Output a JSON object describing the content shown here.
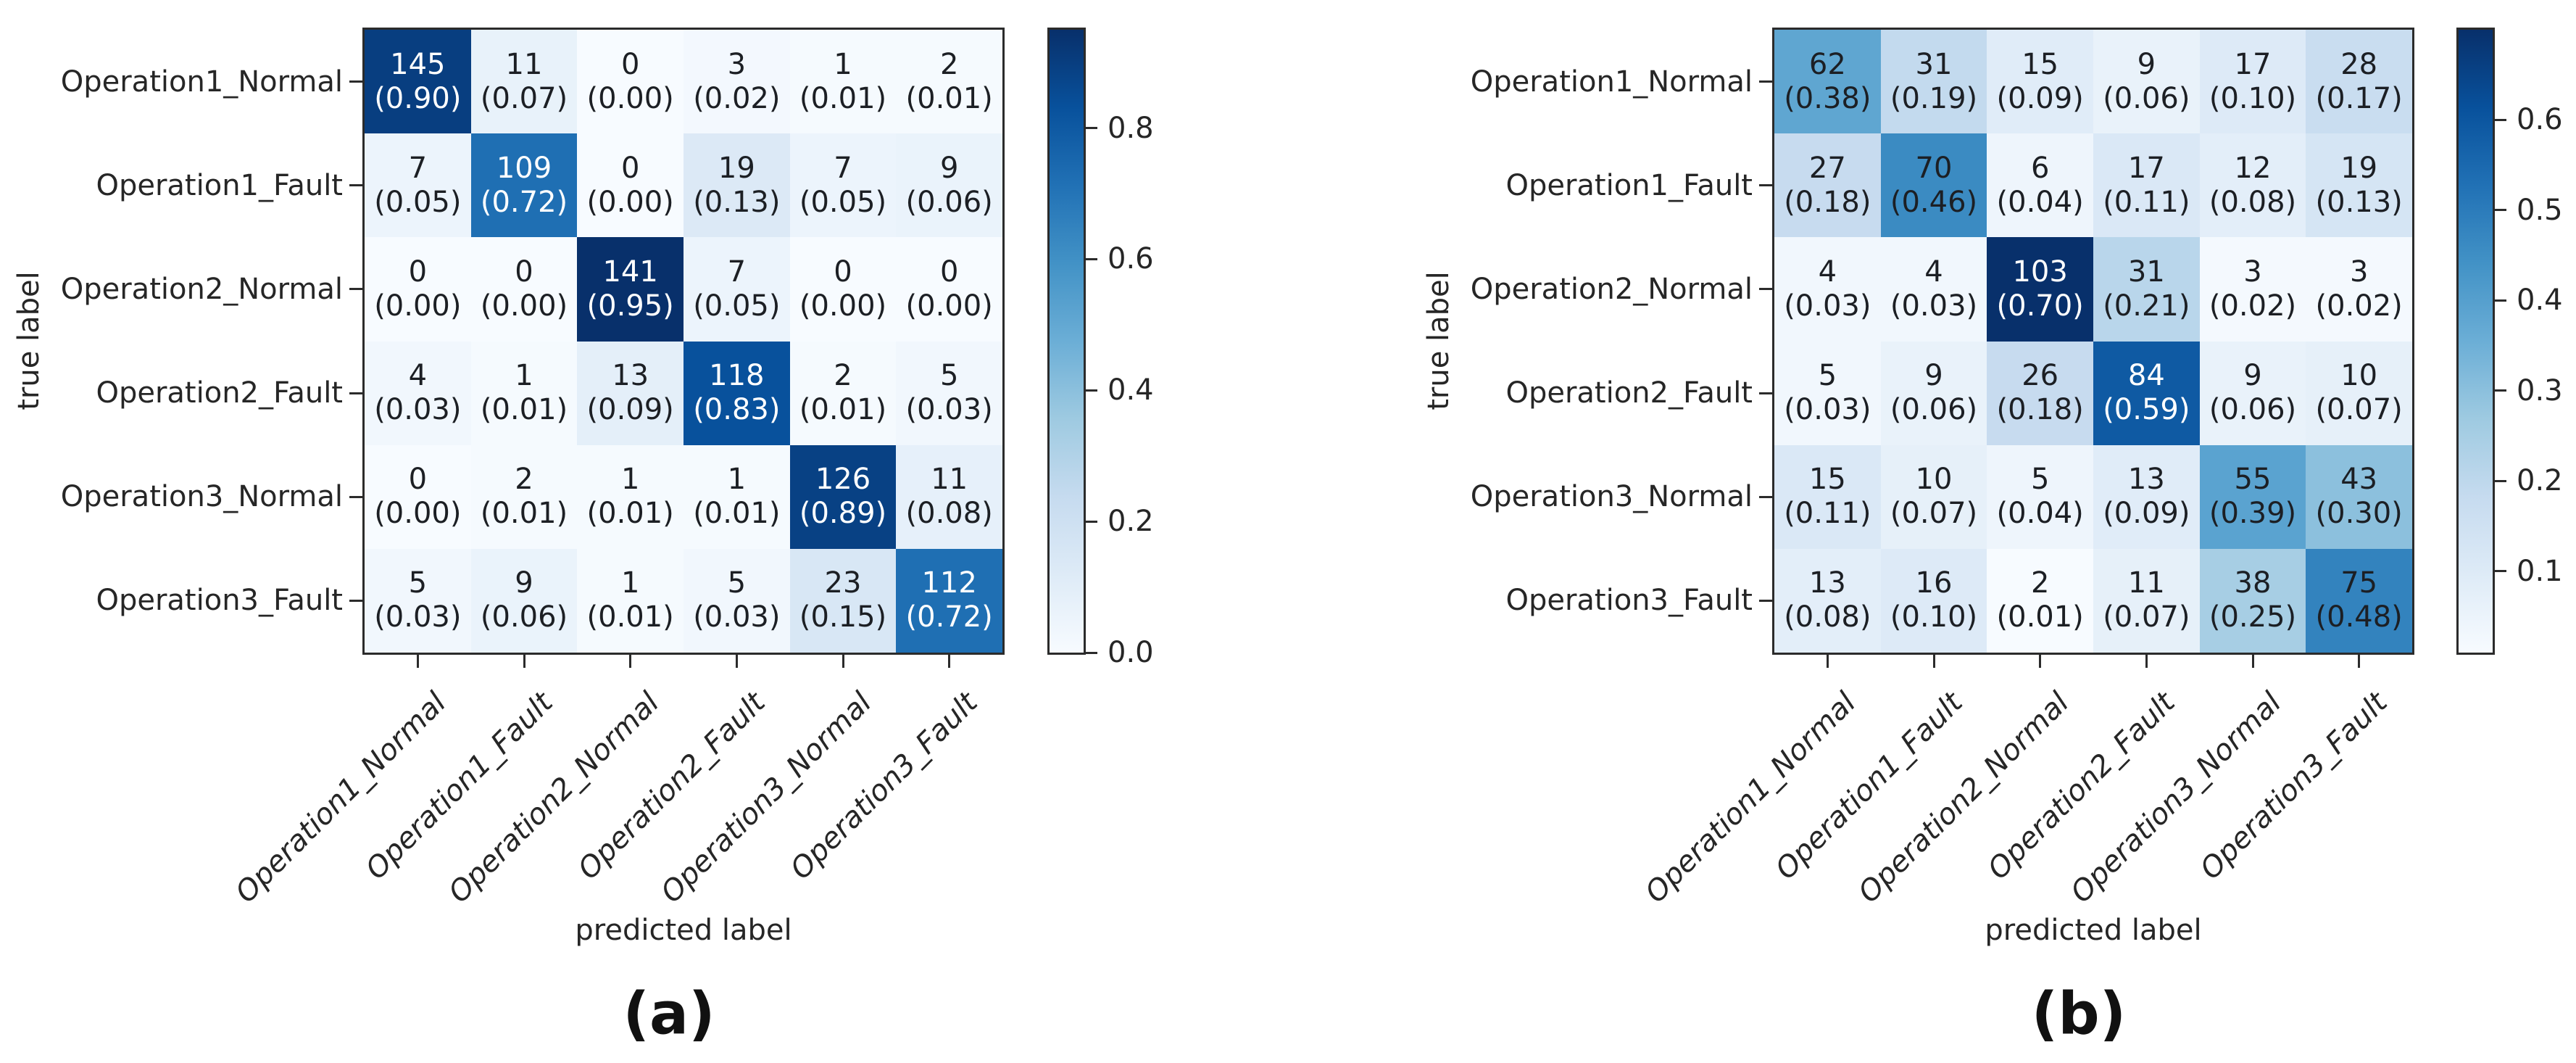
{
  "chart_data": [
    {
      "type": "heatmap",
      "caption": "(a)",
      "xlabel": "predicted label",
      "ylabel": "true label",
      "row_labels": [
        "Operation1_Normal",
        "Operation1_Fault",
        "Operation2_Normal",
        "Operation2_Fault",
        "Operation3_Normal",
        "Operation3_Fault"
      ],
      "col_labels": [
        "Operation1_Normal",
        "Operation1_Fault",
        "Operation2_Normal",
        "Operation2_Fault",
        "Operation3_Normal",
        "Operation3_Fault"
      ],
      "counts": [
        [
          145,
          11,
          0,
          3,
          1,
          2
        ],
        [
          7,
          109,
          0,
          19,
          7,
          9
        ],
        [
          0,
          0,
          141,
          7,
          0,
          0
        ],
        [
          4,
          1,
          13,
          118,
          2,
          5
        ],
        [
          0,
          2,
          1,
          1,
          126,
          11
        ],
        [
          5,
          9,
          1,
          5,
          23,
          112
        ]
      ],
      "proportions": [
        [
          0.9,
          0.07,
          0.0,
          0.02,
          0.01,
          0.01
        ],
        [
          0.05,
          0.72,
          0.0,
          0.13,
          0.05,
          0.06
        ],
        [
          0.0,
          0.0,
          0.95,
          0.05,
          0.0,
          0.0
        ],
        [
          0.03,
          0.01,
          0.09,
          0.83,
          0.01,
          0.03
        ],
        [
          0.0,
          0.01,
          0.01,
          0.01,
          0.89,
          0.08
        ],
        [
          0.03,
          0.06,
          0.01,
          0.03,
          0.15,
          0.72
        ]
      ],
      "vmin": 0.0,
      "vmax": 0.95,
      "colorbar_ticks": [
        0.8,
        0.6,
        0.4,
        0.2,
        0.0
      ],
      "colorbar_position": "right",
      "grid": false
    },
    {
      "type": "heatmap",
      "caption": "(b)",
      "xlabel": "predicted label",
      "ylabel": "true label",
      "row_labels": [
        "Operation1_Normal",
        "Operation1_Fault",
        "Operation2_Normal",
        "Operation2_Fault",
        "Operation3_Normal",
        "Operation3_Fault"
      ],
      "col_labels": [
        "Operation1_Normal",
        "Operation1_Fault",
        "Operation2_Normal",
        "Operation2_Fault",
        "Operation3_Normal",
        "Operation3_Fault"
      ],
      "counts": [
        [
          62,
          31,
          15,
          9,
          17,
          28
        ],
        [
          27,
          70,
          6,
          17,
          12,
          19
        ],
        [
          4,
          4,
          103,
          31,
          3,
          3
        ],
        [
          5,
          9,
          26,
          84,
          9,
          10
        ],
        [
          15,
          10,
          5,
          13,
          55,
          43
        ],
        [
          13,
          16,
          2,
          11,
          38,
          75
        ]
      ],
      "proportions": [
        [
          0.38,
          0.19,
          0.09,
          0.06,
          0.1,
          0.17
        ],
        [
          0.18,
          0.46,
          0.04,
          0.11,
          0.08,
          0.13
        ],
        [
          0.03,
          0.03,
          0.7,
          0.21,
          0.02,
          0.02
        ],
        [
          0.03,
          0.06,
          0.18,
          0.59,
          0.06,
          0.07
        ],
        [
          0.11,
          0.07,
          0.04,
          0.09,
          0.39,
          0.3
        ],
        [
          0.08,
          0.1,
          0.01,
          0.07,
          0.25,
          0.48
        ]
      ],
      "vmin": 0.01,
      "vmax": 0.7,
      "colorbar_ticks": [
        0.6,
        0.5,
        0.4,
        0.3,
        0.2,
        0.1
      ],
      "colorbar_position": "right",
      "grid": false
    }
  ],
  "style": {
    "colormap": "Blues",
    "colormap_stops": [
      "#f7fbff",
      "#deebf7",
      "#c6dbef",
      "#9ecae1",
      "#6baed6",
      "#4292c6",
      "#2171b5",
      "#08519c",
      "#08306b"
    ],
    "spine_color": "#2b2b2b",
    "label_text_color": "#262626",
    "cell_text_dark": "#1c1f24",
    "cell_text_light": "#ffffff",
    "background": "#ffffff"
  }
}
